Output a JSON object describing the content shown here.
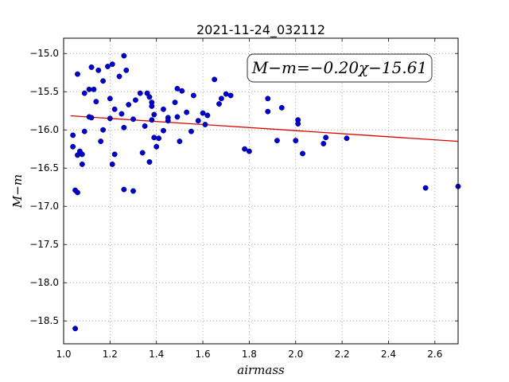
{
  "chart_data": {
    "type": "scatter",
    "title": "2021-11-24_032112",
    "xlabel": "airmass",
    "ylabel": "M−m",
    "annotation": "M−m=−0.20χ−15.61",
    "xlim": [
      1.0,
      2.7
    ],
    "ylim": [
      -18.8,
      -14.8
    ],
    "y_inverted": true,
    "x_ticks": [
      "1.0",
      "1.2",
      "1.4",
      "1.6",
      "1.8",
      "2.0",
      "2.2",
      "2.4",
      "2.6"
    ],
    "y_ticks": [
      "−15.0",
      "−15.5",
      "−16.0",
      "−16.5",
      "−17.0",
      "−17.5",
      "−18.0",
      "−18.5"
    ],
    "grid": true,
    "colors": {
      "points": "#0000cc",
      "fit_line": "#dd0000"
    },
    "fit": {
      "slope": -0.2,
      "intercept": -15.61
    },
    "points": [
      [
        1.04,
        -16.07
      ],
      [
        1.04,
        -16.22
      ],
      [
        1.05,
        -16.79
      ],
      [
        1.05,
        -18.6
      ],
      [
        1.06,
        -16.82
      ],
      [
        1.06,
        -15.27
      ],
      [
        1.06,
        -16.33
      ],
      [
        1.07,
        -16.28
      ],
      [
        1.08,
        -16.45
      ],
      [
        1.08,
        -16.32
      ],
      [
        1.09,
        -16.02
      ],
      [
        1.09,
        -15.52
      ],
      [
        1.11,
        -15.83
      ],
      [
        1.11,
        -15.47
      ],
      [
        1.12,
        -15.18
      ],
      [
        1.12,
        -15.84
      ],
      [
        1.13,
        -15.47
      ],
      [
        1.14,
        -15.63
      ],
      [
        1.15,
        -15.22
      ],
      [
        1.16,
        -16.15
      ],
      [
        1.17,
        -16.0
      ],
      [
        1.17,
        -15.36
      ],
      [
        1.19,
        -15.17
      ],
      [
        1.2,
        -15.85
      ],
      [
        1.2,
        -15.59
      ],
      [
        1.21,
        -15.14
      ],
      [
        1.21,
        -16.45
      ],
      [
        1.22,
        -16.32
      ],
      [
        1.22,
        -15.73
      ],
      [
        1.24,
        -15.3
      ],
      [
        1.25,
        -15.79
      ],
      [
        1.26,
        -15.03
      ],
      [
        1.26,
        -15.97
      ],
      [
        1.26,
        -16.78
      ],
      [
        1.27,
        -15.22
      ],
      [
        1.28,
        -15.67
      ],
      [
        1.3,
        -15.86
      ],
      [
        1.3,
        -16.8
      ],
      [
        1.31,
        -15.61
      ],
      [
        1.33,
        -15.52
      ],
      [
        1.34,
        -16.3
      ],
      [
        1.35,
        -15.95
      ],
      [
        1.36,
        -15.52
      ],
      [
        1.37,
        -15.57
      ],
      [
        1.37,
        -16.42
      ],
      [
        1.38,
        -15.64
      ],
      [
        1.38,
        -15.69
      ],
      [
        1.38,
        -15.87
      ],
      [
        1.39,
        -16.1
      ],
      [
        1.39,
        -15.8
      ],
      [
        1.4,
        -16.22
      ],
      [
        1.41,
        -16.11
      ],
      [
        1.43,
        -15.73
      ],
      [
        1.43,
        -16.01
      ],
      [
        1.45,
        -15.84
      ],
      [
        1.45,
        -15.88
      ],
      [
        1.48,
        -15.64
      ],
      [
        1.49,
        -15.83
      ],
      [
        1.49,
        -15.46
      ],
      [
        1.5,
        -16.15
      ],
      [
        1.51,
        -15.49
      ],
      [
        1.53,
        -15.77
      ],
      [
        1.55,
        -16.02
      ],
      [
        1.56,
        -15.55
      ],
      [
        1.58,
        -15.88
      ],
      [
        1.6,
        -15.78
      ],
      [
        1.61,
        -15.93
      ],
      [
        1.62,
        -15.81
      ],
      [
        1.65,
        -15.34
      ],
      [
        1.67,
        -15.66
      ],
      [
        1.68,
        -15.59
      ],
      [
        1.7,
        -15.53
      ],
      [
        1.72,
        -15.55
      ],
      [
        1.78,
        -16.25
      ],
      [
        1.8,
        -16.28
      ],
      [
        1.88,
        -15.59
      ],
      [
        1.88,
        -15.76
      ],
      [
        1.92,
        -16.14
      ],
      [
        1.94,
        -15.71
      ],
      [
        2.0,
        -16.14
      ],
      [
        2.01,
        -15.87
      ],
      [
        2.01,
        -15.92
      ],
      [
        2.03,
        -16.31
      ],
      [
        2.12,
        -16.18
      ],
      [
        2.13,
        -16.1
      ],
      [
        2.22,
        -16.11
      ],
      [
        2.56,
        -16.76
      ],
      [
        2.7,
        -16.74
      ]
    ]
  }
}
